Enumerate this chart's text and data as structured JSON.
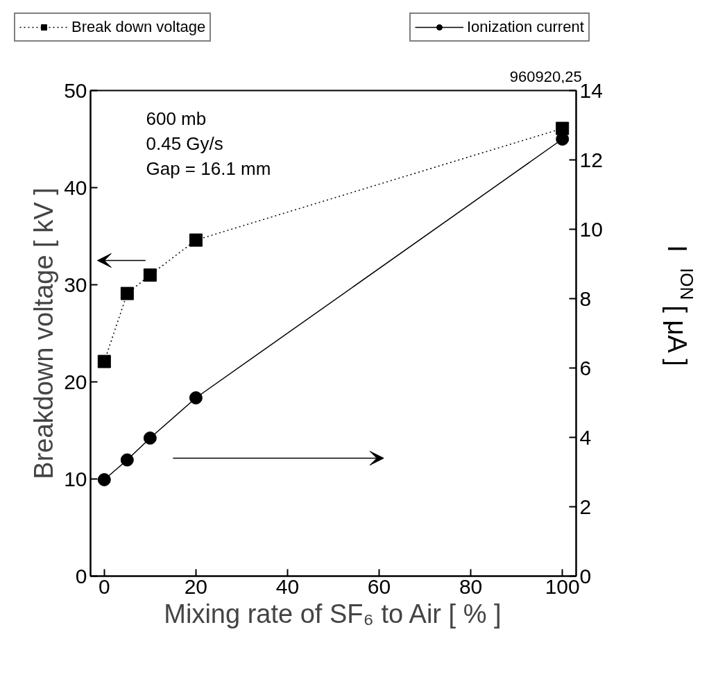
{
  "chart_data": {
    "type": "line",
    "xlabel": "Mixing rate of SF₆ to Air [ % ]",
    "ylabel": "Breakdown voltage [ kV ]",
    "y2label": "I$_{ION}$ [ μA ]",
    "x": [
      0,
      5,
      10,
      20,
      100
    ],
    "xlim": [
      -3,
      103
    ],
    "xticks": [
      0,
      20,
      40,
      60,
      80,
      100
    ],
    "ylim": [
      0,
      50
    ],
    "yticks": [
      0,
      10,
      20,
      30,
      40,
      50
    ],
    "y2lim": [
      0,
      14
    ],
    "y2ticks": [
      0,
      2,
      4,
      6,
      8,
      10,
      12,
      14
    ],
    "series": [
      {
        "name": "Break down voltage",
        "color": "#000000",
        "values": [
          22.1,
          29.1,
          31.0,
          34.6,
          46.1
        ],
        "marker": "square",
        "line_style": "dotted"
      },
      {
        "name": "Ionization current",
        "color": "#000000",
        "values": [
          2.78,
          3.35,
          3.98,
          5.14,
          12.6
        ],
        "marker": "circle",
        "line_style": "solid",
        "axis": "y2"
      }
    ],
    "annotations": [
      "600 mb\n0.45 Gy/s\nGap = 16.1 mm",
      "960920,25"
    ],
    "legend": "top",
    "grid": false
  }
}
